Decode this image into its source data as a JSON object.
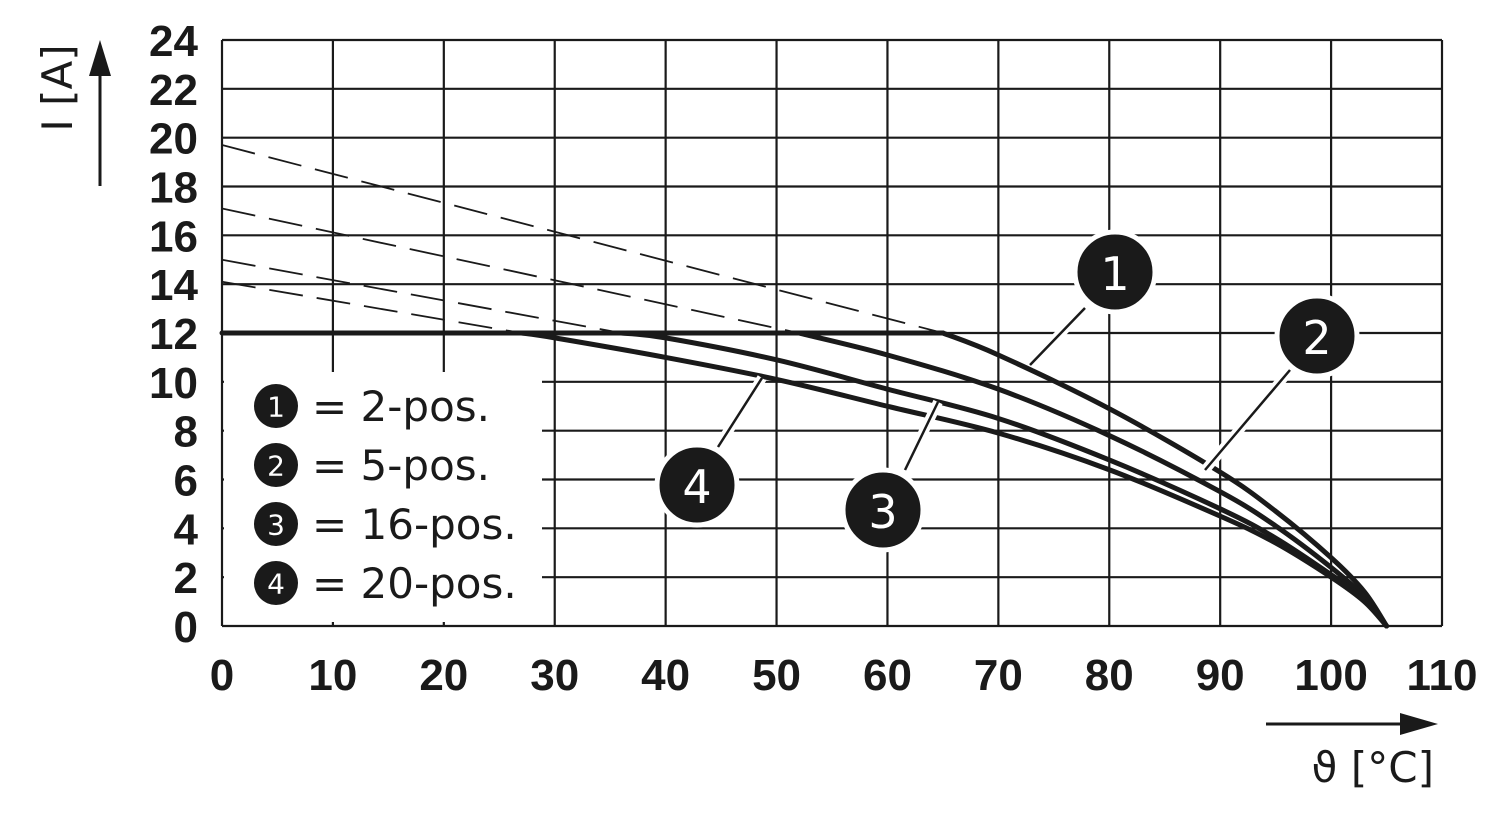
{
  "chart_data": {
    "type": "line",
    "xlabel": "ϑ [°C]",
    "ylabel": "I [A]",
    "xlim": [
      0,
      110
    ],
    "ylim": [
      0,
      24
    ],
    "x_ticks": [
      0,
      10,
      20,
      30,
      40,
      50,
      60,
      70,
      80,
      90,
      100,
      110
    ],
    "y_ticks": [
      0,
      2,
      4,
      6,
      8,
      10,
      12,
      14,
      16,
      18,
      20,
      22,
      24
    ],
    "grid": true,
    "current_limit": 12,
    "max_temperature": 105,
    "series": [
      {
        "marker": "1",
        "legend": "= 2-pos.",
        "unlimited_current_at_0": 19.7,
        "x": [
          0,
          10,
          20,
          30,
          40,
          50,
          60,
          65,
          70,
          80,
          90,
          95,
          100,
          103,
          105
        ],
        "y": [
          19.7,
          18.8,
          17.8,
          16.8,
          15.6,
          14.3,
          12.8,
          12.0,
          11.1,
          8.9,
          6.3,
          4.7,
          2.8,
          1.4,
          0
        ]
      },
      {
        "marker": "2",
        "legend": "= 5-pos.",
        "unlimited_current_at_0": 17.1,
        "x": [
          0,
          10,
          20,
          30,
          40,
          50,
          52,
          60,
          70,
          80,
          90,
          95,
          100,
          103,
          105
        ],
        "y": [
          17.1,
          16.3,
          15.5,
          14.6,
          13.5,
          12.4,
          12.0,
          11.1,
          9.7,
          7.8,
          5.5,
          4.1,
          2.4,
          1.2,
          0
        ]
      },
      {
        "marker": "3",
        "legend": "= 16-pos.",
        "unlimited_current_at_0": 15.0,
        "x": [
          0,
          10,
          20,
          30,
          36,
          40,
          50,
          60,
          70,
          80,
          90,
          95,
          100,
          103,
          105
        ],
        "y": [
          15.0,
          14.3,
          13.6,
          12.8,
          12.0,
          11.8,
          10.9,
          9.7,
          8.5,
          6.8,
          4.8,
          3.6,
          2.1,
          1.1,
          0
        ]
      },
      {
        "marker": "4",
        "legend": "= 20-pos.",
        "unlimited_current_at_0": 14.1,
        "x": [
          0,
          10,
          20,
          27,
          30,
          40,
          50,
          60,
          70,
          80,
          90,
          95,
          100,
          103,
          105
        ],
        "y": [
          14.1,
          13.4,
          12.7,
          12.0,
          11.8,
          11.0,
          10.1,
          9.0,
          7.9,
          6.4,
          4.5,
          3.4,
          2.0,
          1.0,
          0
        ]
      }
    ]
  }
}
